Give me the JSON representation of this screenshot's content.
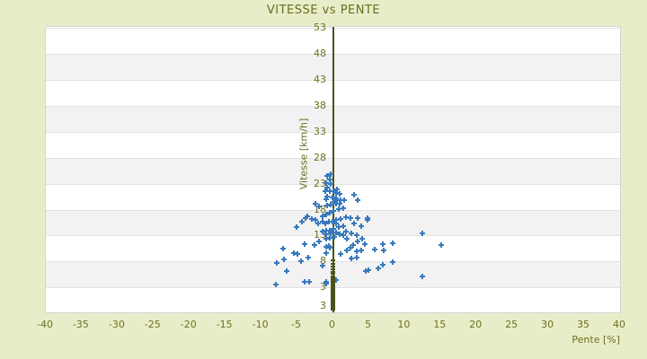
{
  "title": "VITESSE vs PENTE",
  "colors": {
    "page_background": "#e8edc9",
    "plot_background": "#ffffff",
    "band_gray": "#f2f2f2",
    "gridline": "#e2e2e2",
    "plot_border": "#d4d4d4",
    "text_olive": "#6d701f",
    "axis_line_olive": "#4b521c",
    "marker_blue": "#3879bc"
  },
  "chart_data": {
    "type": "scatter",
    "title": "VITESSE vs PENTE",
    "xlabel": "Pente [%]",
    "ylabel": "Vitesse [km/h]",
    "xlim": [
      -40,
      40
    ],
    "ylim": [
      -1.8,
      53.2
    ],
    "x_ticks": [
      -40,
      -35,
      -30,
      -25,
      -20,
      -15,
      -10,
      -5,
      0,
      5,
      10,
      15,
      20,
      25,
      30,
      35,
      40
    ],
    "y_ticks": [
      53,
      48,
      43,
      38,
      33,
      28,
      23,
      18,
      13,
      8,
      3
    ],
    "y_axis_bottom_edge_label": "3",
    "gray_band_start_values": [
      3,
      13,
      23,
      33,
      43
    ],
    "band_height_units": 5,
    "grid": "horizontal only",
    "legend": "none",
    "zero_vertical_line": {
      "x": 0,
      "color": "#4b521c"
    },
    "series": [
      {
        "name": "vitesse-vs-pente",
        "marker": "plus",
        "color": "#3879bc",
        "points": [
          [
            -5.1,
            14.6
          ],
          [
            -3.8,
            16.3
          ],
          [
            -2.5,
            16.0
          ],
          [
            -1.5,
            16.7
          ],
          [
            -1.1,
            15.3
          ],
          [
            -0.9,
            13.9
          ],
          [
            -0.3,
            13.6
          ],
          [
            -7.0,
            10.4
          ],
          [
            -5.5,
            9.7
          ],
          [
            -4.9,
            9.4
          ],
          [
            -4.0,
            11.3
          ],
          [
            -2.6,
            11.1
          ],
          [
            -2.0,
            11.8
          ],
          [
            -0.6,
            11.0
          ],
          [
            -7.8,
            7.7
          ],
          [
            -6.8,
            8.4
          ],
          [
            -4.5,
            8.0
          ],
          [
            -3.4,
            8.7
          ],
          [
            -6.5,
            6.1
          ],
          [
            -8.0,
            3.5
          ],
          [
            -3.9,
            4.0
          ],
          [
            -3.3,
            4.1
          ],
          [
            -0.9,
            4.1
          ],
          [
            -2.5,
            19.1
          ],
          [
            -2.0,
            18.6
          ],
          [
            -3.6,
            16.7
          ],
          [
            -3.0,
            16.2
          ],
          [
            -4.3,
            15.6
          ],
          [
            -1.5,
            15.6
          ],
          [
            -2.1,
            15.4
          ],
          [
            -0.8,
            24.5
          ],
          [
            -0.3,
            24.8
          ],
          [
            -0.5,
            23.8
          ],
          [
            -1.0,
            23.1
          ],
          [
            -0.3,
            22.9
          ],
          [
            -0.8,
            22.2
          ],
          [
            -1.1,
            21.5
          ],
          [
            -0.4,
            21.5
          ],
          [
            0.1,
            21.5
          ],
          [
            0.6,
            21.9
          ],
          [
            0.4,
            21.2
          ],
          [
            0.9,
            21.0
          ],
          [
            -0.8,
            20.5
          ],
          [
            -1.0,
            20.0
          ],
          [
            -0.1,
            20.3
          ],
          [
            0.4,
            20.1
          ],
          [
            0.6,
            19.9
          ],
          [
            1.1,
            19.8
          ],
          [
            1.6,
            19.9
          ],
          [
            3.0,
            20.8
          ],
          [
            3.5,
            19.9
          ],
          [
            0.1,
            19.4
          ],
          [
            0.5,
            19.1
          ],
          [
            1.0,
            19.1
          ],
          [
            -0.3,
            18.9
          ],
          [
            -0.8,
            18.7
          ],
          [
            1.4,
            18.2
          ],
          [
            0.8,
            18.1
          ],
          [
            0.1,
            17.7
          ],
          [
            -0.5,
            17.4
          ],
          [
            -0.9,
            17.0
          ],
          [
            1.8,
            16.5
          ],
          [
            2.4,
            16.3
          ],
          [
            1.1,
            16.2
          ],
          [
            0.5,
            16.0
          ],
          [
            -0.1,
            15.6
          ],
          [
            -0.6,
            15.6
          ],
          [
            2.9,
            15.3
          ],
          [
            3.5,
            16.3
          ],
          [
            4.8,
            16.3
          ],
          [
            1.4,
            14.8
          ],
          [
            0.8,
            14.6
          ],
          [
            0.1,
            14.3
          ],
          [
            -0.4,
            13.9
          ],
          [
            1.8,
            13.8
          ],
          [
            2.6,
            13.4
          ],
          [
            3.9,
            14.8
          ],
          [
            3.3,
            13.0
          ],
          [
            0.5,
            15.3
          ],
          [
            -1.4,
            13.7
          ],
          [
            -0.9,
            13.2
          ],
          [
            -0.3,
            13.5
          ],
          [
            0.4,
            13.6
          ],
          [
            0.9,
            13.2
          ],
          [
            0.2,
            12.8
          ],
          [
            -0.5,
            12.6
          ],
          [
            -1.0,
            12.4
          ],
          [
            1.5,
            13.1
          ],
          [
            2.0,
            12.4
          ],
          [
            3.5,
            11.9
          ],
          [
            4.1,
            12.3
          ],
          [
            2.8,
            11.2
          ],
          [
            2.4,
            10.7
          ],
          [
            4.5,
            11.3
          ],
          [
            1.9,
            10.2
          ],
          [
            3.3,
            10.0
          ],
          [
            8.3,
            11.6
          ],
          [
            7.1,
            10.2
          ],
          [
            -0.4,
            10.6
          ],
          [
            -0.9,
            10.9
          ],
          [
            2.6,
            8.6
          ],
          [
            3.3,
            8.8
          ],
          [
            8.3,
            7.8
          ],
          [
            6.3,
            6.6
          ],
          [
            4.6,
            6.1
          ],
          [
            4.8,
            16.1
          ],
          [
            12.4,
            13.4
          ],
          [
            7.0,
            11.3
          ],
          [
            5.8,
            10.3
          ],
          [
            3.9,
            10.1
          ],
          [
            15.1,
            11.1
          ],
          [
            7.0,
            7.3
          ],
          [
            5.0,
            6.3
          ],
          [
            12.5,
            5.2
          ],
          [
            -1.0,
            9.7
          ],
          [
            1.1,
            9.4
          ],
          [
            -1.4,
            7.2
          ],
          [
            0.4,
            4.4
          ],
          [
            -0.9,
            3.7
          ]
        ]
      },
      {
        "name": "zero-slope-stopped",
        "marker": "dash",
        "color": "#4b521c",
        "points": [
          [
            0,
            8.3
          ],
          [
            0,
            7.6
          ],
          [
            0,
            7.0
          ],
          [
            0,
            6.5
          ],
          [
            0,
            6.0
          ],
          [
            0,
            5.6
          ],
          [
            0,
            5.2
          ],
          [
            0,
            4.8
          ],
          [
            0,
            4.5
          ],
          [
            0,
            4.2
          ],
          [
            0,
            3.9
          ],
          [
            0,
            3.6
          ],
          [
            0,
            3.3
          ],
          [
            0,
            3.0
          ],
          [
            0,
            2.7
          ],
          [
            0,
            2.4
          ],
          [
            0,
            2.1
          ],
          [
            0,
            1.8
          ],
          [
            0,
            1.5
          ],
          [
            0,
            1.2
          ],
          [
            0,
            0.9
          ],
          [
            0,
            0.6
          ],
          [
            0,
            0.3
          ],
          [
            0,
            0.0
          ],
          [
            0,
            -0.3
          ],
          [
            0,
            -0.6
          ],
          [
            0,
            -0.9
          ],
          [
            0,
            -1.2
          ]
        ]
      }
    ]
  }
}
